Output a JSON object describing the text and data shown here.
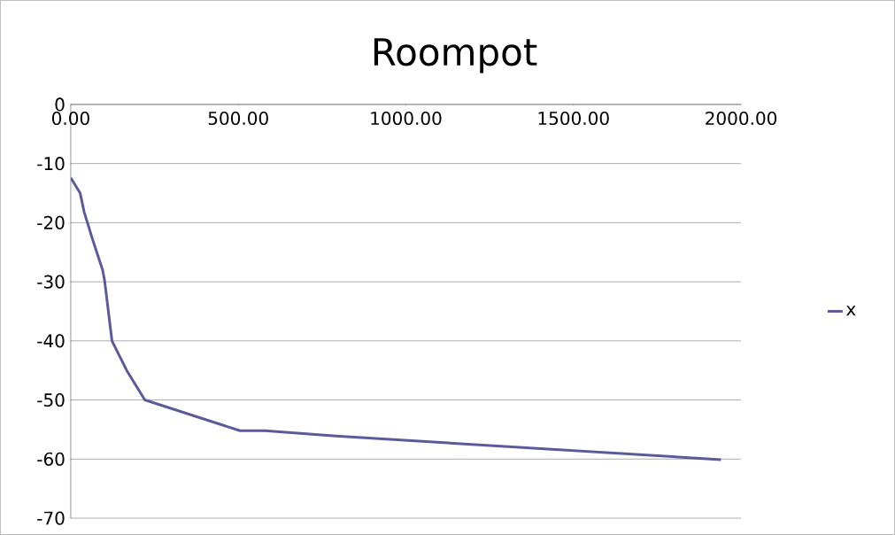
{
  "chart_data": {
    "type": "line",
    "title": "Roompot",
    "x": [
      0,
      28,
      40,
      66,
      95,
      101,
      123,
      167,
      221,
      505,
      579,
      791,
      1940
    ],
    "series": [
      {
        "name": "x",
        "color": "#5b5b9b",
        "values": [
          -12.4,
          -15.0,
          -18.2,
          -23,
          -28,
          -29.8,
          -40,
          -45,
          -50,
          -55.2,
          -55.2,
          -56.1,
          -60.1
        ]
      }
    ],
    "xlim": [
      0,
      2000
    ],
    "ylim": [
      -70,
      0
    ],
    "xticks": [
      {
        "value": 0,
        "label": "0.00"
      },
      {
        "value": 500,
        "label": "500.00"
      },
      {
        "value": 1000,
        "label": "1000.00"
      },
      {
        "value": 1500,
        "label": "1500.00"
      },
      {
        "value": 2000,
        "label": "2000.00"
      }
    ],
    "yticks": [
      0,
      -10,
      -20,
      -30,
      -40,
      -50,
      -60,
      -70
    ],
    "grid": "y",
    "legend": "right",
    "marker": "none",
    "line_style": "solid"
  }
}
